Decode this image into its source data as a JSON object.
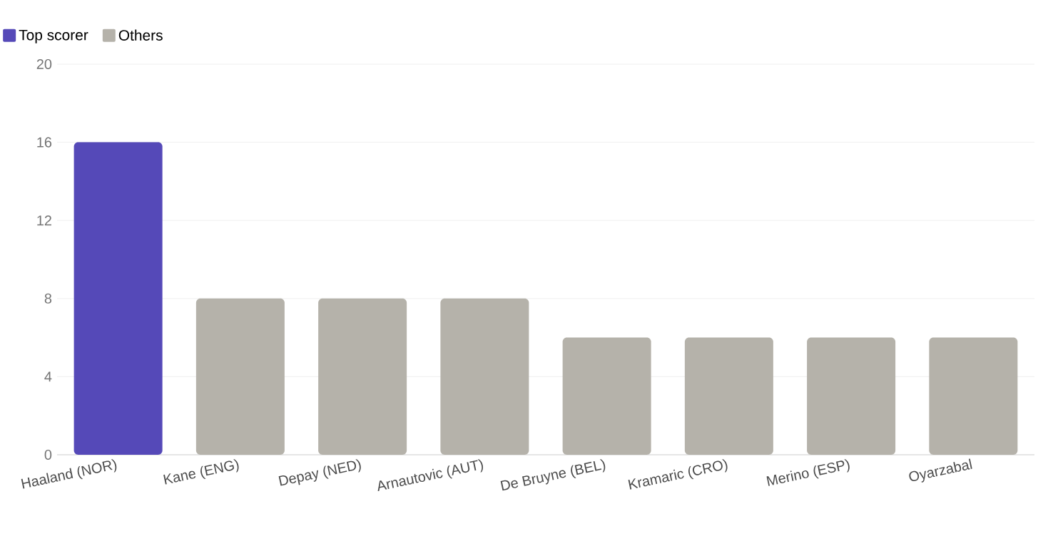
{
  "chart_data": {
    "type": "bar",
    "categories": [
      "Haaland (NOR)",
      "Kane (ENG)",
      "Depay (NED)",
      "Arnautovic (AUT)",
      "De Bruyne (BEL)",
      "Kramaric (CRO)",
      "Merino (ESP)",
      "Oyarzabal"
    ],
    "series": [
      {
        "name": "Top scorer",
        "color": "#5549b8",
        "values": [
          16,
          null,
          null,
          null,
          null,
          null,
          null,
          null
        ]
      },
      {
        "name": "Others",
        "color": "#b5b2aa",
        "values": [
          null,
          8,
          8,
          8,
          6,
          6,
          6,
          6
        ]
      }
    ],
    "ylim": [
      0,
      20
    ],
    "yticks": [
      0,
      4,
      8,
      12,
      16,
      20
    ],
    "grid": "y",
    "legend": "top left"
  }
}
